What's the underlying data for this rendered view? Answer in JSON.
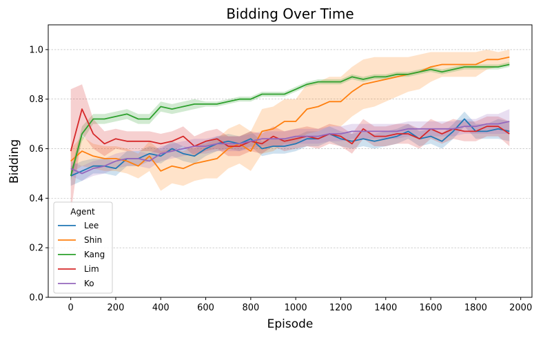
{
  "chart_data": {
    "type": "line",
    "title": "Bidding Over Time",
    "xlabel": "Episode",
    "ylabel": "Bidding",
    "xlim": [
      -100,
      2050
    ],
    "ylim": [
      0.0,
      1.1
    ],
    "xticks": [
      0,
      200,
      400,
      600,
      800,
      1000,
      1200,
      1400,
      1600,
      1800,
      2000
    ],
    "yticks": [
      0.0,
      0.2,
      0.4,
      0.6,
      0.8,
      1.0
    ],
    "xtick_labels": [
      "0",
      "200",
      "400",
      "600",
      "800",
      "1000",
      "1200",
      "1400",
      "1600",
      "1800",
      "2000"
    ],
    "ytick_labels": [
      "0.0",
      "0.2",
      "0.4",
      "0.6",
      "0.8",
      "1.0"
    ],
    "grid": "horizontal-dashed",
    "legend": {
      "title": "Agent",
      "placement": "lower-left"
    },
    "x": [
      0,
      50,
      100,
      150,
      200,
      250,
      300,
      350,
      400,
      450,
      500,
      550,
      600,
      650,
      700,
      750,
      800,
      850,
      900,
      950,
      1000,
      1050,
      1100,
      1150,
      1200,
      1250,
      1300,
      1350,
      1400,
      1450,
      1500,
      1550,
      1600,
      1650,
      1700,
      1750,
      1800,
      1850,
      1900,
      1950
    ],
    "series": [
      {
        "name": "Lee",
        "color": "#1f77b4",
        "values": [
          0.49,
          0.51,
          0.53,
          0.53,
          0.52,
          0.56,
          0.56,
          0.58,
          0.57,
          0.6,
          0.58,
          0.57,
          0.6,
          0.62,
          0.63,
          0.62,
          0.64,
          0.6,
          0.61,
          0.61,
          0.62,
          0.64,
          0.64,
          0.66,
          0.64,
          0.63,
          0.64,
          0.63,
          0.64,
          0.65,
          0.67,
          0.64,
          0.65,
          0.63,
          0.67,
          0.72,
          0.67,
          0.67,
          0.68,
          0.67
        ],
        "band": [
          0.04,
          0.04,
          0.03,
          0.03,
          0.03,
          0.03,
          0.03,
          0.03,
          0.03,
          0.03,
          0.03,
          0.03,
          0.03,
          0.03,
          0.03,
          0.03,
          0.03,
          0.03,
          0.03,
          0.03,
          0.03,
          0.03,
          0.03,
          0.03,
          0.03,
          0.03,
          0.03,
          0.03,
          0.03,
          0.03,
          0.03,
          0.03,
          0.03,
          0.03,
          0.03,
          0.03,
          0.03,
          0.03,
          0.04,
          0.04
        ]
      },
      {
        "name": "Shin",
        "color": "#ff7f0e",
        "values": [
          0.55,
          0.59,
          0.57,
          0.56,
          0.56,
          0.55,
          0.53,
          0.57,
          0.51,
          0.53,
          0.52,
          0.54,
          0.55,
          0.56,
          0.6,
          0.62,
          0.59,
          0.67,
          0.68,
          0.71,
          0.71,
          0.76,
          0.77,
          0.79,
          0.79,
          0.83,
          0.86,
          0.87,
          0.88,
          0.89,
          0.9,
          0.91,
          0.93,
          0.94,
          0.94,
          0.94,
          0.94,
          0.96,
          0.96,
          0.97
        ],
        "band": [
          0.05,
          0.06,
          0.05,
          0.05,
          0.05,
          0.05,
          0.05,
          0.06,
          0.08,
          0.07,
          0.07,
          0.07,
          0.07,
          0.08,
          0.08,
          0.08,
          0.08,
          0.09,
          0.09,
          0.09,
          0.09,
          0.1,
          0.1,
          0.1,
          0.1,
          0.1,
          0.1,
          0.1,
          0.09,
          0.08,
          0.07,
          0.07,
          0.06,
          0.05,
          0.05,
          0.05,
          0.05,
          0.04,
          0.03,
          0.03
        ]
      },
      {
        "name": "Kang",
        "color": "#2ca02c",
        "values": [
          0.49,
          0.66,
          0.72,
          0.72,
          0.73,
          0.74,
          0.72,
          0.72,
          0.77,
          0.76,
          0.77,
          0.78,
          0.78,
          0.78,
          0.79,
          0.8,
          0.8,
          0.82,
          0.82,
          0.82,
          0.84,
          0.86,
          0.87,
          0.87,
          0.87,
          0.89,
          0.88,
          0.89,
          0.89,
          0.9,
          0.9,
          0.91,
          0.92,
          0.91,
          0.92,
          0.93,
          0.93,
          0.93,
          0.93,
          0.94
        ],
        "band": [
          0.02,
          0.03,
          0.02,
          0.02,
          0.02,
          0.02,
          0.02,
          0.02,
          0.02,
          0.02,
          0.02,
          0.02,
          0.01,
          0.01,
          0.01,
          0.01,
          0.01,
          0.01,
          0.01,
          0.01,
          0.01,
          0.01,
          0.01,
          0.01,
          0.01,
          0.01,
          0.01,
          0.01,
          0.01,
          0.01,
          0.01,
          0.01,
          0.01,
          0.01,
          0.01,
          0.01,
          0.01,
          0.01,
          0.01,
          0.01
        ]
      },
      {
        "name": "Lim",
        "color": "#d62728",
        "values": [
          0.59,
          0.76,
          0.66,
          0.62,
          0.64,
          0.63,
          0.63,
          0.63,
          0.62,
          0.63,
          0.65,
          0.61,
          0.63,
          0.64,
          0.61,
          0.61,
          0.63,
          0.62,
          0.65,
          0.63,
          0.64,
          0.65,
          0.64,
          0.66,
          0.65,
          0.62,
          0.68,
          0.65,
          0.65,
          0.66,
          0.66,
          0.64,
          0.68,
          0.66,
          0.68,
          0.67,
          0.67,
          0.69,
          0.69,
          0.66
        ],
        "band": [
          0.25,
          0.1,
          0.06,
          0.05,
          0.04,
          0.04,
          0.04,
          0.04,
          0.04,
          0.04,
          0.04,
          0.04,
          0.04,
          0.04,
          0.04,
          0.04,
          0.04,
          0.04,
          0.04,
          0.04,
          0.04,
          0.04,
          0.04,
          0.04,
          0.04,
          0.04,
          0.04,
          0.04,
          0.04,
          0.04,
          0.04,
          0.04,
          0.04,
          0.04,
          0.04,
          0.04,
          0.04,
          0.04,
          0.04,
          0.05
        ]
      },
      {
        "name": "Ko",
        "color": "#9467bd",
        "values": [
          0.52,
          0.5,
          0.52,
          0.53,
          0.55,
          0.56,
          0.56,
          0.55,
          0.58,
          0.59,
          0.6,
          0.61,
          0.61,
          0.62,
          0.62,
          0.62,
          0.63,
          0.64,
          0.64,
          0.64,
          0.65,
          0.65,
          0.65,
          0.66,
          0.66,
          0.67,
          0.67,
          0.67,
          0.67,
          0.67,
          0.68,
          0.68,
          0.68,
          0.68,
          0.68,
          0.69,
          0.69,
          0.7,
          0.7,
          0.71
        ],
        "band": [
          0.03,
          0.03,
          0.03,
          0.03,
          0.03,
          0.03,
          0.03,
          0.03,
          0.03,
          0.03,
          0.03,
          0.03,
          0.03,
          0.03,
          0.03,
          0.03,
          0.03,
          0.03,
          0.03,
          0.03,
          0.03,
          0.03,
          0.03,
          0.03,
          0.03,
          0.03,
          0.03,
          0.03,
          0.03,
          0.03,
          0.03,
          0.03,
          0.03,
          0.03,
          0.03,
          0.03,
          0.03,
          0.04,
          0.04,
          0.05
        ]
      }
    ]
  }
}
